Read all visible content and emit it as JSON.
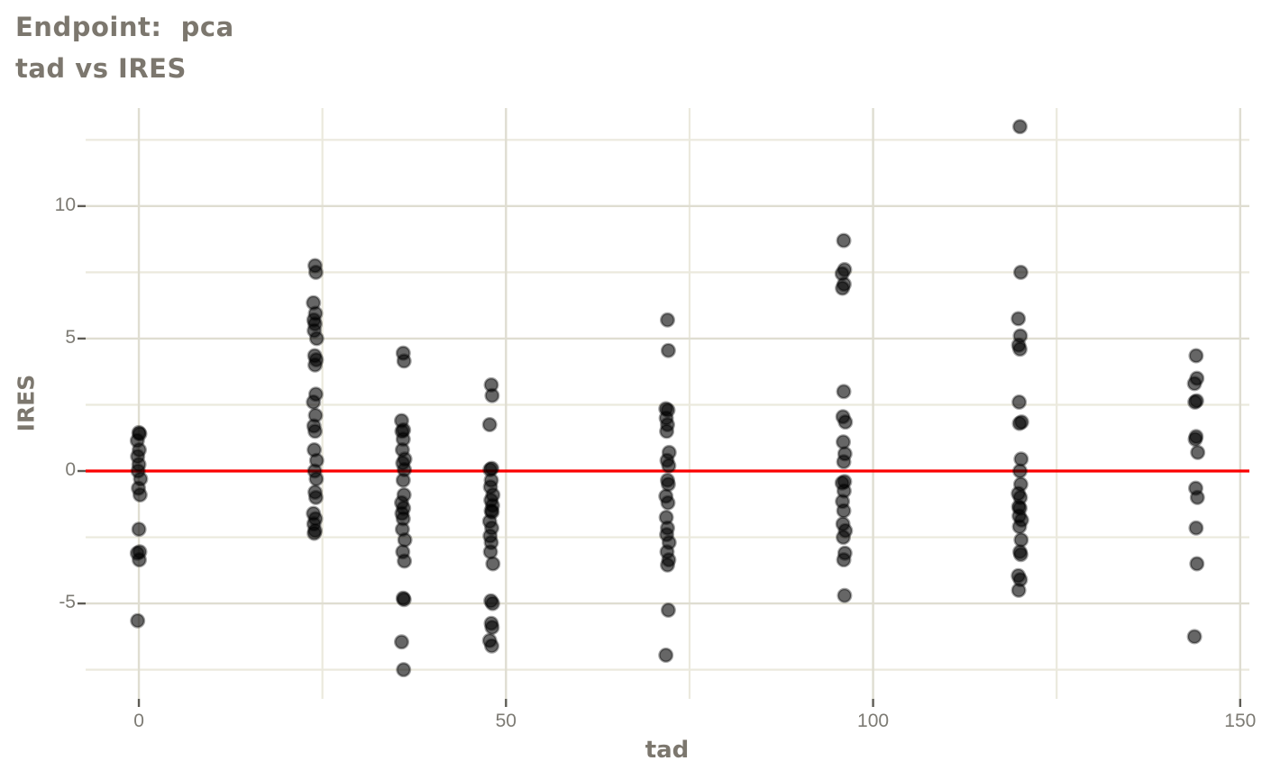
{
  "chart_data": {
    "type": "scatter",
    "title": "Endpoint:  pca",
    "subtitle": "tad vs IRES",
    "xlabel": "tad",
    "ylabel": "IRES",
    "xlim": [
      -7.25,
      151.25
    ],
    "ylim": [
      -8.6,
      13.7
    ],
    "x_ticks": [
      0,
      50,
      100,
      150
    ],
    "x_minor_gridlines": [
      25,
      75,
      125
    ],
    "y_ticks": [
      -5,
      0,
      5,
      10
    ],
    "y_minor_gridlines": [
      -7.5,
      -2.5,
      2.5,
      7.5,
      12.5
    ],
    "legend": "none",
    "grid": "major+minor",
    "reference_line": {
      "y": 0,
      "color": "#fb0000"
    },
    "point_style": {
      "color": "#000000",
      "alpha": 0.6,
      "radius_px": 7.2
    },
    "colors": {
      "background": "#ffffff",
      "grid_major": "#dfddd1",
      "grid_minor": "#ebe9dd",
      "axis_tick": "#5e5c55",
      "tick_text": "#7d7b74",
      "title_text": "#7c776e",
      "reference_line": "#fb0000"
    },
    "series": [
      {
        "tad": 0,
        "ires": [
          1.45,
          1.4,
          1.15,
          0.8,
          0.55,
          0.25,
          0.0,
          -0.3,
          -0.65,
          -0.9,
          -2.2,
          -3.05,
          -3.1,
          -3.35,
          -5.65
        ]
      },
      {
        "tad": 24,
        "ires": [
          7.75,
          7.5,
          6.35,
          5.95,
          5.7,
          5.55,
          5.3,
          5.0,
          4.35,
          4.2,
          4.0,
          2.9,
          2.6,
          2.1,
          1.7,
          1.5,
          0.8,
          0.4,
          0.0,
          -0.3,
          -0.8,
          -1.0,
          -1.6,
          -1.8,
          -2.0,
          -2.25,
          -2.35
        ]
      },
      {
        "tad": 36,
        "ires": [
          4.45,
          4.15,
          1.9,
          1.55,
          1.5,
          1.2,
          0.8,
          0.45,
          0.3,
          0.05,
          -0.35,
          -0.9,
          -1.2,
          -1.4,
          -1.6,
          -1.8,
          -2.2,
          -2.6,
          -3.05,
          -3.4,
          -4.8,
          -4.85,
          -6.45,
          -7.5
        ]
      },
      {
        "tad": 48,
        "ires": [
          3.25,
          2.85,
          1.75,
          0.1,
          0.05,
          -0.35,
          -0.6,
          -0.9,
          -1.1,
          -1.3,
          -1.5,
          -1.55,
          -1.9,
          -2.15,
          -2.45,
          -2.7,
          -3.05,
          -3.5,
          -4.9,
          -5.0,
          -5.75,
          -5.9,
          -6.4,
          -6.6
        ]
      },
      {
        "tad": 72,
        "ires": [
          5.7,
          4.55,
          2.35,
          2.3,
          2.0,
          1.75,
          1.5,
          0.7,
          0.4,
          0.2,
          -0.35,
          -0.5,
          -0.95,
          -1.2,
          -1.75,
          -2.15,
          -2.4,
          -2.7,
          -3.05,
          -3.35,
          -3.55,
          -5.25,
          -6.95
        ]
      },
      {
        "tad": 96,
        "ires": [
          8.7,
          7.6,
          7.45,
          7.05,
          6.9,
          3.0,
          2.05,
          1.85,
          1.1,
          0.65,
          0.35,
          -0.4,
          -0.45,
          -0.75,
          -1.15,
          -1.5,
          -2.0,
          -2.25,
          -2.5,
          -3.1,
          -3.35,
          -4.7
        ]
      },
      {
        "tad": 120,
        "ires": [
          13.0,
          7.5,
          5.75,
          5.1,
          4.75,
          4.6,
          2.6,
          1.85,
          1.8,
          0.45,
          0.0,
          -0.5,
          -0.85,
          -1.0,
          -1.35,
          -1.4,
          -1.7,
          -1.85,
          -2.1,
          -2.6,
          -3.05,
          -3.15,
          -3.95,
          -4.1,
          -4.5
        ]
      },
      {
        "tad": 144,
        "ires": [
          4.35,
          3.5,
          3.3,
          2.65,
          2.6,
          1.3,
          1.2,
          0.7,
          -0.65,
          -1.0,
          -2.15,
          -3.5,
          -6.25
        ]
      }
    ]
  }
}
